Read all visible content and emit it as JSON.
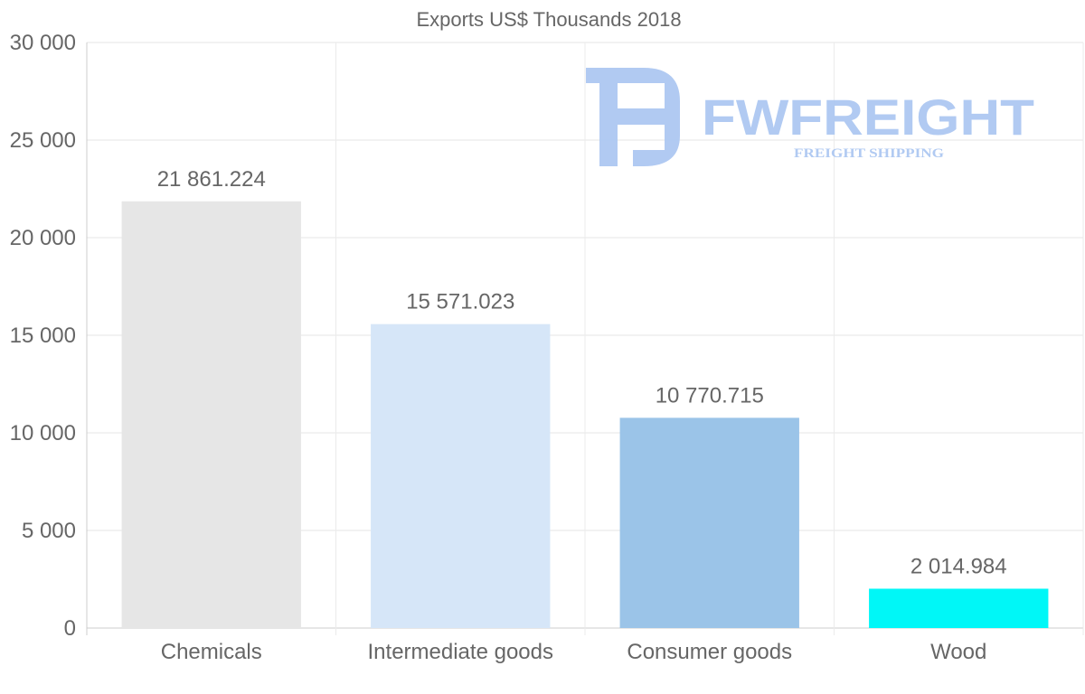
{
  "chart_data": {
    "type": "bar",
    "title": "Exports US$ Thousands 2018",
    "categories": [
      "Chemicals",
      "Intermediate goods",
      "Consumer goods",
      "Wood"
    ],
    "values": [
      21861.224,
      15571.023,
      10770.715,
      2014.984
    ],
    "value_labels": [
      "21 861.224",
      "15 571.023",
      "10 770.715",
      "2 014.984"
    ],
    "bar_colors": [
      "#e6e6e6",
      "#d6e6f8",
      "#9bc4e8",
      "#00f7f7"
    ],
    "ylim": [
      0,
      30000
    ],
    "yticks": [
      0,
      5000,
      10000,
      15000,
      20000,
      25000,
      30000
    ],
    "ytick_labels": [
      "0",
      "5 000",
      "10 000",
      "15 000",
      "20 000",
      "25 000",
      "30 000"
    ],
    "xlabel": "",
    "ylabel": "",
    "grid": true
  },
  "watermark": {
    "brand": "FWFREIGHT",
    "tagline": "FREIGHT SHIPPING",
    "color": "#adc8f2"
  }
}
